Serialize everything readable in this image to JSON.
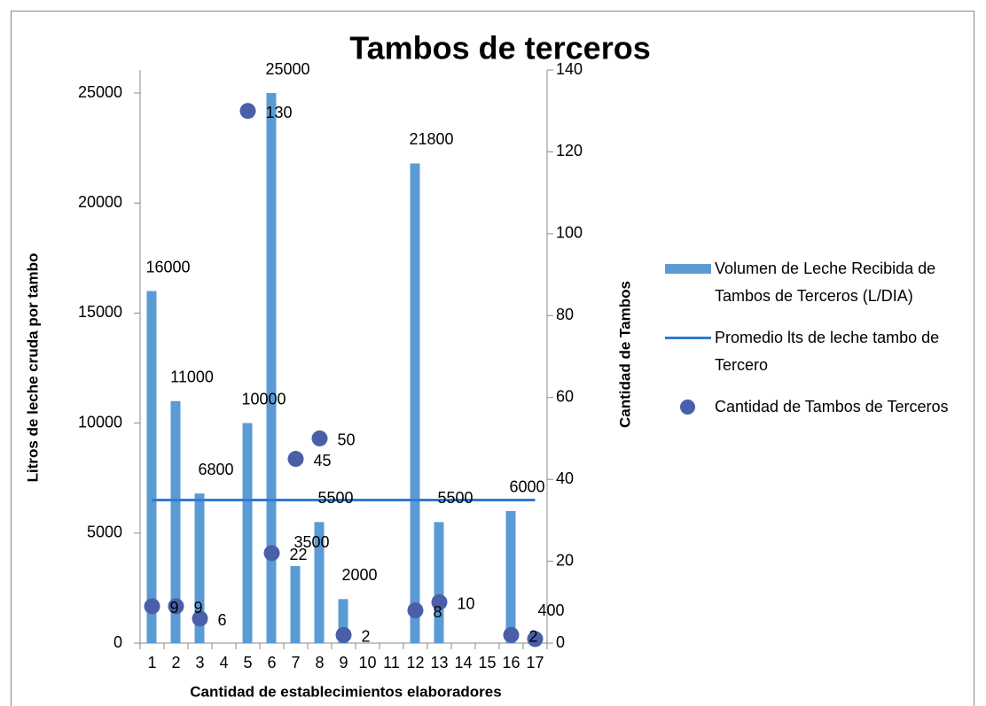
{
  "chart_data": {
    "type": "combo",
    "title": "Tambos de terceros",
    "x_label": "Cantidad de establecimientos elaboradores",
    "y_label": "Litros de leche cruda por tambo",
    "y2_label": "Cantidad de Tambos",
    "categories": [
      "1",
      "2",
      "3",
      "4",
      "5",
      "6",
      "7",
      "8",
      "9",
      "10",
      "11",
      "12",
      "13",
      "14",
      "15",
      "16",
      "17"
    ],
    "ylim": [
      0,
      25000
    ],
    "yticks": [
      0,
      5000,
      10000,
      15000,
      20000,
      25000
    ],
    "y2lim": [
      0,
      140
    ],
    "y2ticks": [
      0,
      20,
      40,
      60,
      80,
      100,
      120,
      140
    ],
    "legend": "right",
    "series": [
      {
        "name": "Volumen de Leche Recibida de Tambos de Terceros (L/DIA)",
        "type": "bar",
        "color": "#5b9bd5",
        "values": [
          16000,
          11000,
          6800,
          null,
          10000,
          25000,
          3500,
          5500,
          2000,
          null,
          null,
          21800,
          5500,
          null,
          null,
          6000,
          400
        ]
      },
      {
        "name": "Promedio lts de leche tambo de Tercero",
        "type": "line",
        "color": "#2e7bd0",
        "values": [
          6500,
          6500,
          6500,
          6500,
          6500,
          6500,
          6500,
          6500,
          6500,
          6500,
          6500,
          6500,
          6500,
          6500,
          6500,
          6500,
          6500
        ]
      },
      {
        "name": "Cantidad de Tambos de Terceros",
        "type": "scatter",
        "color": "#4a5fa8",
        "axis": "y2",
        "values": [
          9,
          9,
          6,
          null,
          130,
          22,
          45,
          50,
          2,
          null,
          null,
          8,
          10,
          null,
          null,
          2,
          1
        ],
        "value_labels": [
          "9",
          "9",
          "6",
          null,
          "130",
          "22",
          "45",
          "50",
          "2",
          null,
          null,
          "8",
          "10",
          null,
          null,
          "2",
          null
        ]
      }
    ]
  }
}
